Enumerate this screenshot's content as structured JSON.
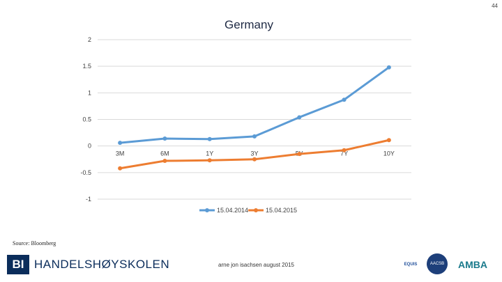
{
  "page_number": "44",
  "source_note": "Source: Bloomberg",
  "footer": {
    "logo_initials": "BI",
    "logo_name": "HANDELSHØYSKOLEN",
    "center_text": "arne jon isachsen august 2015",
    "accreditations": [
      "EQUIS",
      "AACSB",
      "AMBA"
    ]
  },
  "colors": {
    "series1": "#5b9bd5",
    "series2": "#ed7d31",
    "grid": "#d9d9d9",
    "text": "#404040",
    "title": "#1f2a44"
  },
  "chart_data": {
    "type": "line",
    "title": "Germany",
    "xlabel": "",
    "ylabel": "",
    "categories": [
      "3M",
      "6M",
      "1Y",
      "3Y",
      "5Y",
      "7Y",
      "10Y"
    ],
    "ylim": [
      -1,
      2
    ],
    "yticks": [
      2,
      1.5,
      1,
      0.5,
      0,
      -0.5,
      -1
    ],
    "ytick_labels": [
      "2",
      "1.5",
      "1",
      "0.5",
      "0",
      "-0.5",
      "-1"
    ],
    "legend_position": "bottom",
    "series": [
      {
        "name": "15.04.2014",
        "values": [
          0.06,
          0.14,
          0.13,
          0.18,
          0.54,
          0.87,
          1.48
        ]
      },
      {
        "name": "15.04.2015",
        "values": [
          -0.42,
          -0.28,
          -0.27,
          -0.25,
          -0.15,
          -0.08,
          0.11
        ]
      }
    ]
  }
}
